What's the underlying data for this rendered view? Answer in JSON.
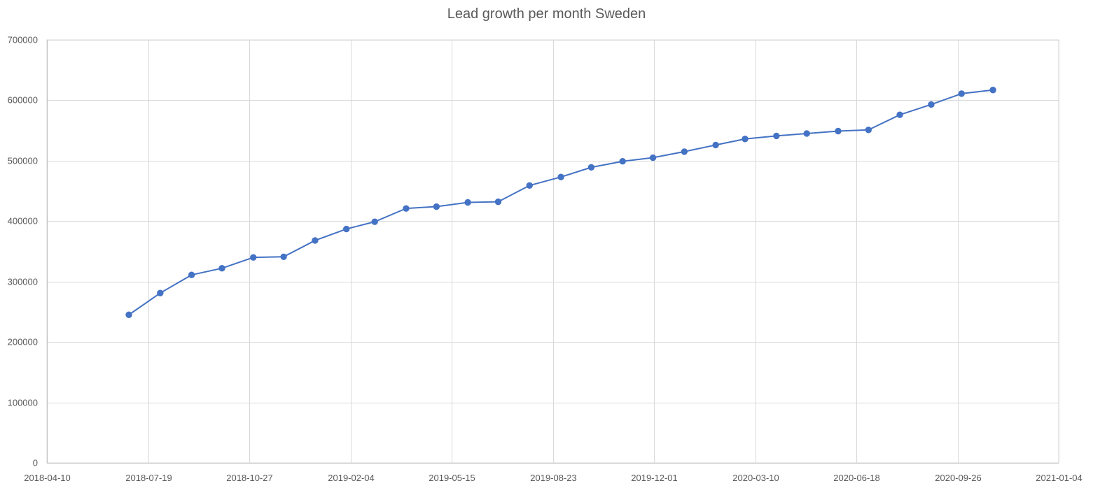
{
  "chart_data": {
    "type": "line",
    "title": "Lead growth per month Sweden",
    "xlabel": "",
    "ylabel": "",
    "x_axis": {
      "type": "date",
      "min": "2018-04-10",
      "max": "2021-01-04",
      "tick_labels": [
        "2018-04-10",
        "2018-07-19",
        "2018-10-27",
        "2019-02-04",
        "2019-05-15",
        "2019-08-23",
        "2019-12-01",
        "2020-03-10",
        "2020-06-18",
        "2020-09-26",
        "2021-01-04"
      ]
    },
    "y_axis": {
      "min": 0,
      "max": 700000,
      "tick_labels": [
        "0",
        "100000",
        "200000",
        "300000",
        "400000",
        "500000",
        "600000",
        "700000"
      ]
    },
    "grid": true,
    "legend": "none",
    "series": [
      {
        "color": "#4472C4",
        "marker": "circle",
        "points": [
          {
            "x": "2018-06-30",
            "y": 245000
          },
          {
            "x": "2018-07-31",
            "y": 281000
          },
          {
            "x": "2018-08-31",
            "y": 311000
          },
          {
            "x": "2018-09-30",
            "y": 322000
          },
          {
            "x": "2018-10-31",
            "y": 340000
          },
          {
            "x": "2018-11-30",
            "y": 341000
          },
          {
            "x": "2018-12-31",
            "y": 368000
          },
          {
            "x": "2019-01-31",
            "y": 387000
          },
          {
            "x": "2019-02-28",
            "y": 399000
          },
          {
            "x": "2019-03-31",
            "y": 421000
          },
          {
            "x": "2019-04-30",
            "y": 424000
          },
          {
            "x": "2019-05-31",
            "y": 431000
          },
          {
            "x": "2019-06-30",
            "y": 432000
          },
          {
            "x": "2019-07-31",
            "y": 459000
          },
          {
            "x": "2019-08-31",
            "y": 473000
          },
          {
            "x": "2019-09-30",
            "y": 489000
          },
          {
            "x": "2019-10-31",
            "y": 499000
          },
          {
            "x": "2019-11-30",
            "y": 505000
          },
          {
            "x": "2019-12-31",
            "y": 515000
          },
          {
            "x": "2020-01-31",
            "y": 526000
          },
          {
            "x": "2020-02-29",
            "y": 536000
          },
          {
            "x": "2020-03-31",
            "y": 541000
          },
          {
            "x": "2020-04-30",
            "y": 545000
          },
          {
            "x": "2020-05-31",
            "y": 549000
          },
          {
            "x": "2020-06-30",
            "y": 551000
          },
          {
            "x": "2020-07-31",
            "y": 576000
          },
          {
            "x": "2020-08-31",
            "y": 593000
          },
          {
            "x": "2020-09-30",
            "y": 611000
          },
          {
            "x": "2020-10-31",
            "y": 617000
          }
        ]
      }
    ]
  }
}
